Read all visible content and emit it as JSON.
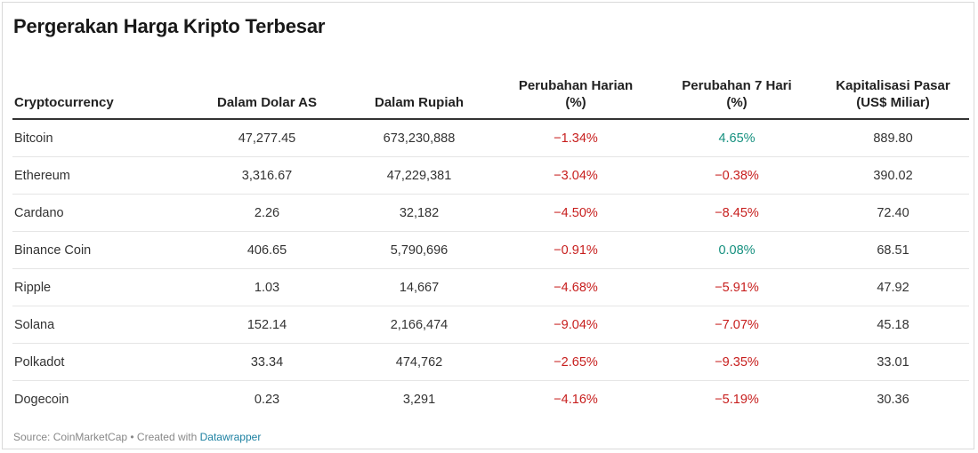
{
  "title": "Pergerakan Harga Kripto Terbesar",
  "colors": {
    "negative": "#c71e1d",
    "positive": "#15907f",
    "link": "#1d81a2"
  },
  "chart_data": {
    "type": "table",
    "title": "Pergerakan Harga Kripto Terbesar",
    "columns": [
      "Cryptocurrency",
      "Dalam Dolar AS",
      "Dalam Rupiah",
      "Perubahan Harian (%)",
      "Perubahan 7 Hari (%)",
      "Kapitalisasi Pasar (US$ Miliar)"
    ],
    "rows": [
      [
        "Bitcoin",
        "47,277.45",
        "673,230,888",
        "−1.34%",
        "4.65%",
        "889.80"
      ],
      [
        "Ethereum",
        "3,316.67",
        "47,229,381",
        "−3.04%",
        "−0.38%",
        "390.02"
      ],
      [
        "Cardano",
        "2.26",
        "32,182",
        "−4.50%",
        "−8.45%",
        "72.40"
      ],
      [
        "Binance Coin",
        "406.65",
        "5,790,696",
        "−0.91%",
        "0.08%",
        "68.51"
      ],
      [
        "Ripple",
        "1.03",
        "14,667",
        "−4.68%",
        "−5.91%",
        "47.92"
      ],
      [
        "Solana",
        "152.14",
        "2,166,474",
        "−9.04%",
        "−7.07%",
        "45.18"
      ],
      [
        "Polkadot",
        "33.34",
        "474,762",
        "−2.65%",
        "−9.35%",
        "33.01"
      ],
      [
        "Dogecoin",
        "0.23",
        "3,291",
        "−4.16%",
        "−5.19%",
        "30.36"
      ]
    ]
  },
  "header": {
    "col1": "Cryptocurrency",
    "col2": "Dalam Dolar AS",
    "col3": "Dalam Rupiah",
    "col4_line1": "Perubahan Harian",
    "col4_line2": "(%)",
    "col5_line1": "Perubahan 7 Hari",
    "col5_line2": "(%)",
    "col6_line1": "Kapitalisasi Pasar",
    "col6_line2": "(US$ Miliar)"
  },
  "footer": {
    "source": "Source: CoinMarketCap • Created with ",
    "link": "Datawrapper"
  }
}
